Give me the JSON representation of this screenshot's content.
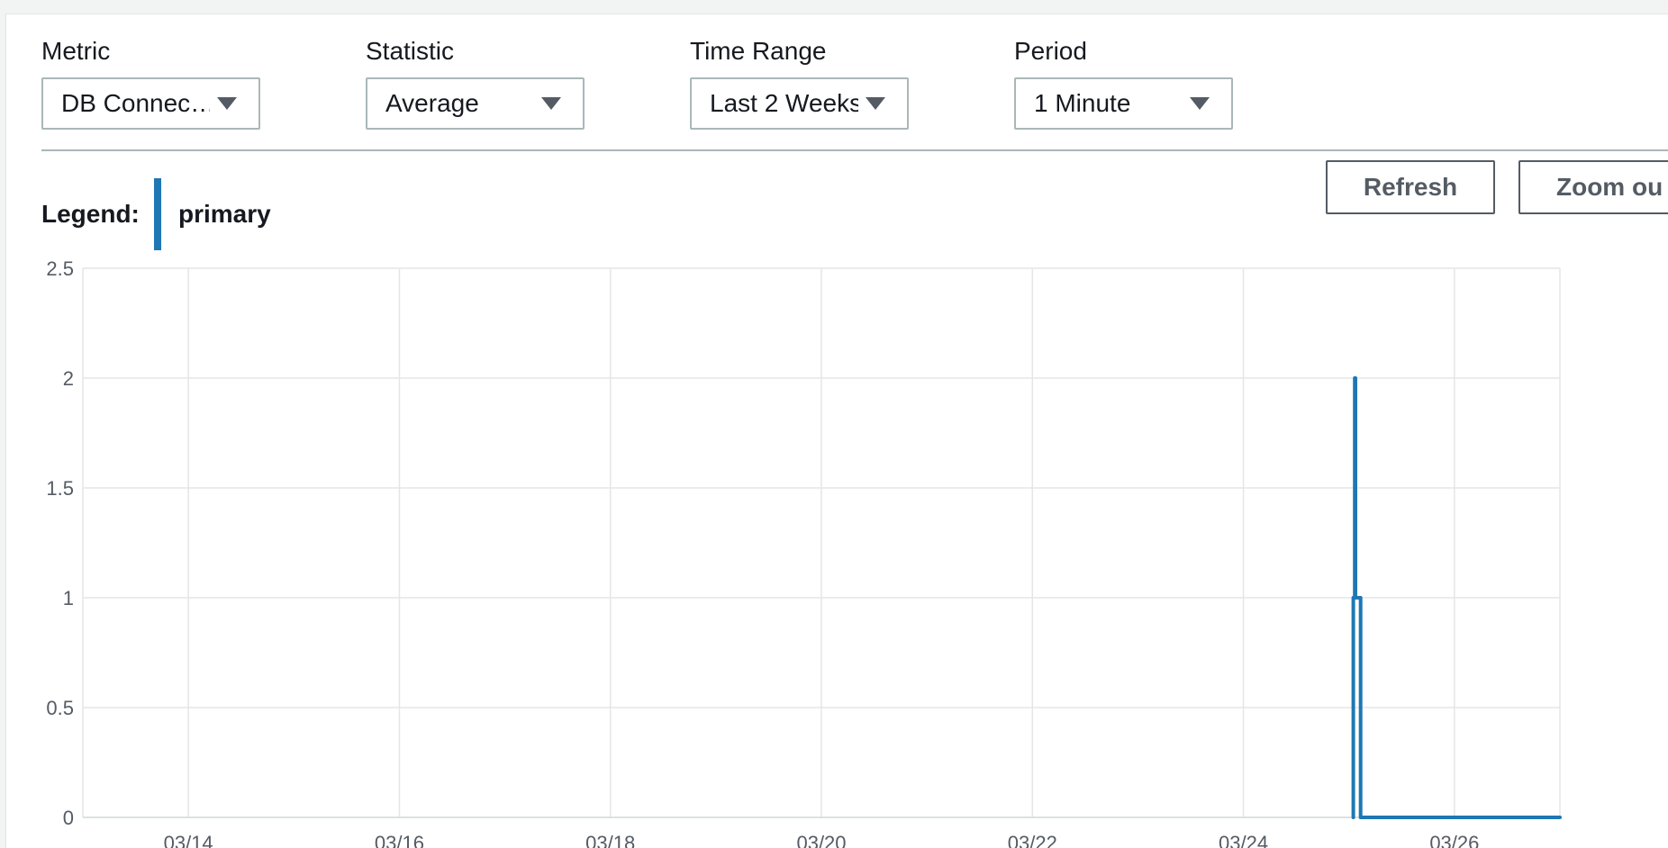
{
  "controls": {
    "metric": {
      "label": "Metric",
      "value": "DB Connec…"
    },
    "statistic": {
      "label": "Statistic",
      "value": "Average"
    },
    "time_range": {
      "label": "Time Range",
      "value": "Last 2 Weeks"
    },
    "period": {
      "label": "Period",
      "value": "1 Minute"
    }
  },
  "buttons": {
    "refresh": "Refresh",
    "zoom_out": "Zoom ou"
  },
  "legend": {
    "title": "Legend:",
    "series_name": "primary",
    "series_color": "#1f77b4"
  },
  "chart_data": {
    "type": "line",
    "title": "",
    "xlabel": "",
    "ylabel": "",
    "ylim": [
      0,
      2.5
    ],
    "yticks": [
      "0",
      "0.5",
      "1",
      "1.5",
      "2",
      "2.5"
    ],
    "xlim": [
      "03/13",
      "03/27"
    ],
    "xticks": [
      "03/14",
      "03/16",
      "03/18",
      "03/20",
      "03/22",
      "03/24",
      "03/26"
    ],
    "grid": true,
    "legend_position": "top-left",
    "series": [
      {
        "name": "primary",
        "color": "#1f77b4",
        "x": [
          "03/25 01:00",
          "03/25 01:00",
          "03/25 01:20",
          "03/25 01:20",
          "03/25 01:30",
          "03/25 01:30",
          "03/25 02:40",
          "03/25 02:40",
          "03/27 00:00"
        ],
        "y": [
          0,
          1,
          1,
          2,
          2,
          1,
          1,
          0,
          0
        ]
      }
    ]
  }
}
